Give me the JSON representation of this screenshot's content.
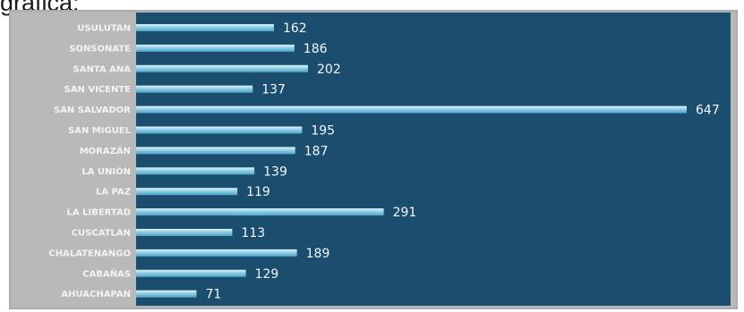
{
  "caption": "gráfica:",
  "colors": {
    "frame": "#b7b9bb",
    "panel": "#1b4e6e",
    "bar_light": "#dff3fb",
    "bar_mid": "#8fcfe6",
    "bar_dark": "#4fa3c6",
    "label": "#f2f4f6"
  },
  "chart_data": {
    "type": "bar",
    "orientation": "horizontal",
    "title": "",
    "xlabel": "",
    "ylabel": "",
    "grid": false,
    "legend": "none",
    "xlim": [
      0,
      647
    ],
    "categories": [
      "USULUTAN",
      "SONSONATE",
      "SANTA ANA",
      "SAN VICENTE",
      "SAN SALVADOR",
      "SAN MIGUEL",
      "MORAZÁN",
      "LA UNIÓN",
      "LA PAZ",
      "LA LIBERTAD",
      "CUSCATLAN",
      "CHALATENANGO",
      "CABAÑAS",
      "AHUACHAPAN"
    ],
    "values": [
      162,
      186,
      202,
      137,
      647,
      195,
      187,
      139,
      119,
      291,
      113,
      189,
      129,
      71
    ]
  }
}
